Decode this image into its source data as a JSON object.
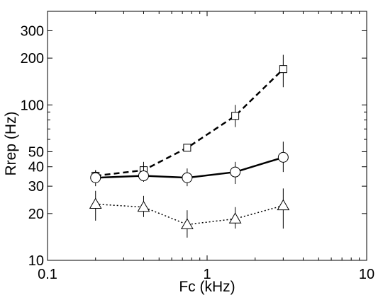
{
  "chart_data": {
    "type": "line",
    "xlabel": "Fc (kHz)",
    "ylabel": "Rrep (Hz)",
    "x_scale": "log",
    "y_scale": "log",
    "xlim": [
      0.1,
      10
    ],
    "ylim": [
      10,
      400
    ],
    "x_ticks": [
      0.1,
      1,
      10
    ],
    "x_tick_labels": [
      "0.1",
      "1",
      "10"
    ],
    "y_ticks": [
      10,
      20,
      30,
      40,
      50,
      100,
      200,
      300
    ],
    "y_tick_labels": [
      "10",
      "20",
      "30",
      "40",
      "50",
      "100",
      "200",
      "300"
    ],
    "grid": false,
    "legend": "none",
    "series": [
      {
        "marker": "square",
        "line_style": "dashed",
        "points": [
          {
            "x": 0.2,
            "y": 35,
            "err_low": 32,
            "err_high": 38
          },
          {
            "x": 0.4,
            "y": 38,
            "err_low": 35,
            "err_high": 43
          },
          {
            "x": 0.75,
            "y": 53,
            "err_low": 51,
            "err_high": 55
          },
          {
            "x": 1.5,
            "y": 85,
            "err_low": 72,
            "err_high": 100
          },
          {
            "x": 3.0,
            "y": 170,
            "err_low": 130,
            "err_high": 210
          }
        ]
      },
      {
        "marker": "circle",
        "line_style": "solid",
        "points": [
          {
            "x": 0.2,
            "y": 34,
            "err_low": 30,
            "err_high": 38
          },
          {
            "x": 0.4,
            "y": 35,
            "err_low": 32,
            "err_high": 40
          },
          {
            "x": 0.75,
            "y": 34,
            "err_low": 30,
            "err_high": 39
          },
          {
            "x": 1.5,
            "y": 37,
            "err_low": 31,
            "err_high": 43
          },
          {
            "x": 3.0,
            "y": 46,
            "err_low": 37,
            "err_high": 58
          }
        ]
      },
      {
        "marker": "triangle",
        "line_style": "dotted",
        "points": [
          {
            "x": 0.2,
            "y": 23,
            "err_low": 18,
            "err_high": 28
          },
          {
            "x": 0.4,
            "y": 22,
            "err_low": 19,
            "err_high": 26
          },
          {
            "x": 0.75,
            "y": 17,
            "err_low": 14,
            "err_high": 21
          },
          {
            "x": 1.5,
            "y": 18.5,
            "err_low": 16,
            "err_high": 22
          },
          {
            "x": 3.0,
            "y": 22.5,
            "err_low": 16,
            "err_high": 29
          }
        ]
      }
    ]
  }
}
